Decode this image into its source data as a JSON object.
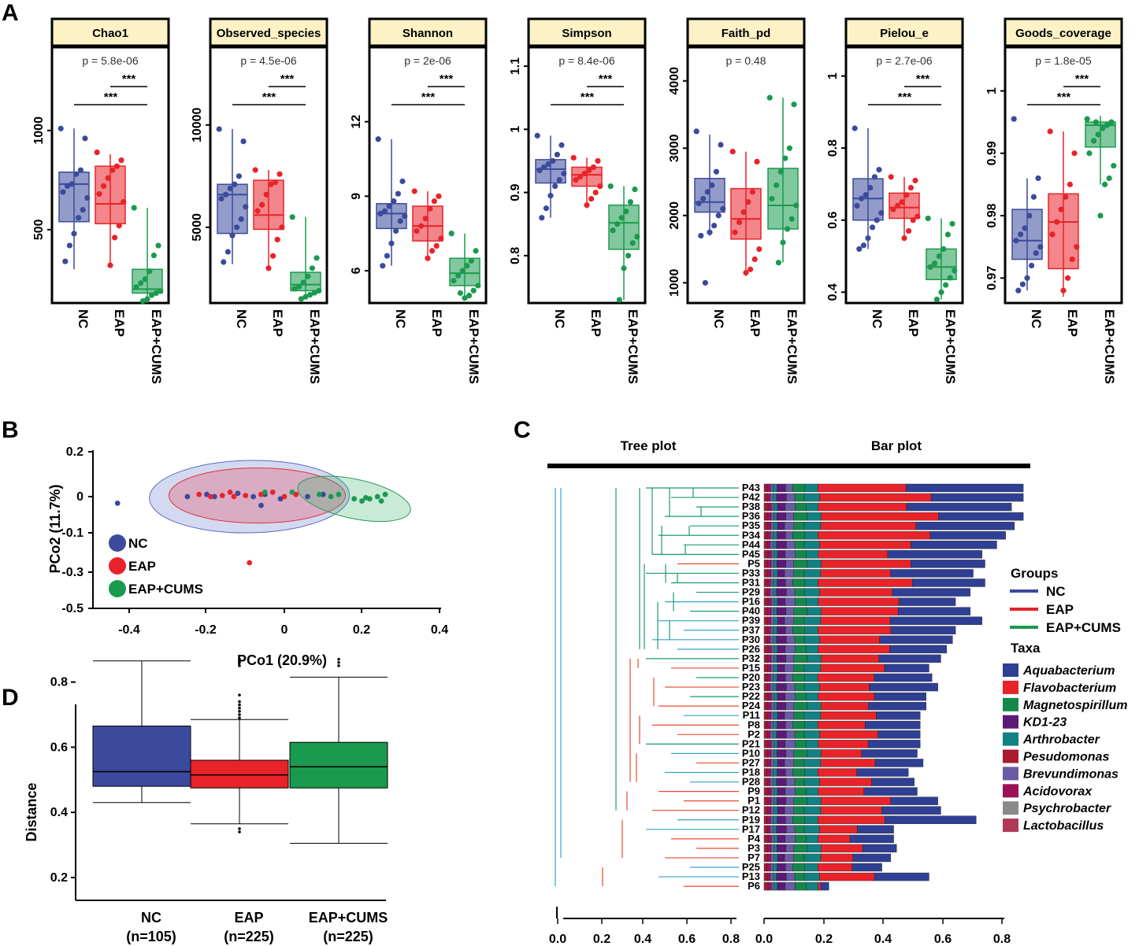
{
  "panels": {
    "a": "A",
    "b": "B",
    "c": "C",
    "d": "D"
  },
  "colors": {
    "nc": "#3b4a9c",
    "eap": "#e8232a",
    "cums": "#1a9a4e",
    "title_bg": "#fdf2c6"
  },
  "alpha_groups": [
    "NC",
    "EAP",
    "EAP+CUMS"
  ],
  "alpha_diversity": [
    {
      "title": "Chao1",
      "p": "p = 5.8e-06",
      "sig": [
        "***",
        "***"
      ],
      "ymin": 130,
      "ymax": 1420,
      "ticks": [
        500,
        1000
      ],
      "boxes": [
        [
          300,
          540,
          730,
          790,
          1010
        ],
        [
          310,
          530,
          630,
          820,
          880
        ],
        [
          130,
          180,
          200,
          300,
          610
        ]
      ],
      "points": [
        [
          1010,
          960,
          800,
          780,
          730,
          720,
          690,
          660,
          600,
          560,
          480,
          420,
          340
        ],
        [
          890,
          850,
          820,
          800,
          760,
          720,
          680,
          640,
          520,
          460,
          320
        ],
        [
          610,
          420,
          370,
          290,
          250,
          230,
          210,
          190,
          180,
          170,
          150,
          140
        ]
      ]
    },
    {
      "title": "Observed_species",
      "p": "p = 4.5e-06",
      "sig": [
        "***",
        "***"
      ],
      "ymin": 1300,
      "ymax": 13800,
      "ticks": [
        5000,
        10000
      ],
      "boxes": [
        [
          3200,
          4700,
          6600,
          7100,
          9800
        ],
        [
          2900,
          4900,
          5600,
          7300,
          7800
        ],
        [
          1500,
          1900,
          2200,
          2800,
          5500
        ]
      ],
      "points": [
        [
          9800,
          9200,
          7500,
          7100,
          6900,
          6600,
          6400,
          6000,
          5400,
          5000,
          4600,
          3800,
          3300
        ],
        [
          7800,
          7600,
          7200,
          7100,
          6600,
          6100,
          5800,
          5000,
          4400,
          3600,
          3000
        ],
        [
          5500,
          3500,
          3000,
          2600,
          2300,
          2100,
          2000,
          1900,
          1800,
          1700,
          1600,
          1500
        ]
      ]
    },
    {
      "title": "Shannon",
      "p": "p = 2e-06",
      "sig": [
        "***",
        "***"
      ],
      "ymin": 4.7,
      "ymax": 15.0,
      "ticks": [
        6,
        9,
        12
      ],
      "boxes": [
        [
          6.2,
          7.7,
          8.3,
          8.7,
          11.3
        ],
        [
          6.5,
          7.2,
          7.8,
          8.6,
          9.2
        ],
        [
          4.9,
          5.4,
          5.9,
          6.5,
          7.5
        ]
      ],
      "points": [
        [
          11.3,
          9.6,
          9.1,
          8.8,
          8.6,
          8.4,
          8.3,
          8.2,
          8.0,
          7.6,
          7.1,
          6.6,
          6.2
        ],
        [
          9.2,
          9.0,
          8.8,
          8.5,
          8.1,
          7.8,
          7.6,
          7.3,
          7.0,
          6.8,
          6.5
        ],
        [
          7.5,
          6.8,
          6.4,
          6.2,
          6.0,
          5.8,
          5.6,
          5.4,
          5.2,
          5.0,
          4.9,
          5.1
        ]
      ]
    },
    {
      "title": "Simpson",
      "p": "p = 8.4e-06",
      "sig": [
        "***",
        "***"
      ],
      "ymin": 0.725,
      "ymax": 1.13,
      "ticks": [
        0.8,
        0.9,
        1.0,
        1.1
      ],
      "boxes": [
        [
          0.86,
          0.915,
          0.937,
          0.952,
          0.99
        ],
        [
          0.875,
          0.91,
          0.928,
          0.94,
          0.955
        ],
        [
          0.73,
          0.81,
          0.852,
          0.88,
          0.91
        ]
      ],
      "points": [
        [
          0.99,
          0.975,
          0.96,
          0.95,
          0.945,
          0.94,
          0.935,
          0.93,
          0.92,
          0.91,
          0.895,
          0.875,
          0.86
        ],
        [
          0.955,
          0.95,
          0.94,
          0.935,
          0.93,
          0.925,
          0.92,
          0.91,
          0.9,
          0.89,
          0.88
        ],
        [
          0.91,
          0.905,
          0.885,
          0.87,
          0.86,
          0.85,
          0.84,
          0.83,
          0.82,
          0.8,
          0.78,
          0.73
        ]
      ]
    },
    {
      "title": "Faith_pd",
      "p": "p = 0.48",
      "sig": [],
      "ymin": 700,
      "ymax": 4500,
      "ticks": [
        1000,
        2000,
        3000,
        4000
      ],
      "boxes": [
        [
          1700,
          2050,
          2200,
          2550,
          3200
        ],
        [
          1100,
          1650,
          1950,
          2400,
          2950
        ],
        [
          1300,
          1800,
          2150,
          2700,
          3750
        ]
      ],
      "points": [
        [
          3250,
          3050,
          2650,
          2450,
          2350,
          2250,
          2180,
          2100,
          2000,
          1850,
          1750,
          1000,
          1700
        ],
        [
          2950,
          2800,
          2350,
          2200,
          2050,
          1900,
          1750,
          1500,
          1350,
          1200,
          1150
        ],
        [
          3750,
          3650,
          3000,
          2850,
          2650,
          2450,
          2250,
          2150,
          1950,
          1800,
          1600,
          1300
        ]
      ]
    },
    {
      "title": "Pielou_e",
      "p": "p = 2.7e-06",
      "sig": [
        "***",
        "***"
      ],
      "ymin": 0.37,
      "ymax": 1.08,
      "ticks": [
        0.4,
        0.6,
        0.8,
        1.0
      ],
      "boxes": [
        [
          0.52,
          0.6,
          0.66,
          0.715,
          0.855
        ],
        [
          0.545,
          0.605,
          0.635,
          0.675,
          0.72
        ],
        [
          0.38,
          0.435,
          0.47,
          0.52,
          0.605
        ]
      ],
      "points": [
        [
          0.855,
          0.74,
          0.72,
          0.69,
          0.67,
          0.66,
          0.64,
          0.62,
          0.6,
          0.58,
          0.55,
          0.53,
          0.52
        ],
        [
          0.72,
          0.71,
          0.69,
          0.67,
          0.65,
          0.64,
          0.63,
          0.61,
          0.6,
          0.57,
          0.55
        ],
        [
          0.605,
          0.59,
          0.56,
          0.52,
          0.5,
          0.48,
          0.47,
          0.46,
          0.44,
          0.42,
          0.4,
          0.38
        ]
      ]
    },
    {
      "title": "Goods_coverage",
      "p": "p = 1.8e-05",
      "sig": [
        "***",
        "***"
      ],
      "ymin": 0.966,
      "ymax": 1.007,
      "ticks": [
        0.97,
        0.98,
        0.99,
        1.0
      ],
      "boxes": [
        [
          0.968,
          0.973,
          0.976,
          0.981,
          0.986
        ],
        [
          0.967,
          0.9715,
          0.979,
          0.9835,
          0.9935
        ],
        [
          0.985,
          0.991,
          0.9945,
          0.995,
          0.996
        ]
      ],
      "points": [
        [
          0.9955,
          0.986,
          0.983,
          0.98,
          0.978,
          0.977,
          0.976,
          0.975,
          0.974,
          0.972,
          0.97,
          0.969,
          0.968
        ],
        [
          0.9935,
          0.99,
          0.985,
          0.983,
          0.981,
          0.979,
          0.977,
          0.975,
          0.973,
          0.97,
          0.968
        ],
        [
          0.9955,
          0.995,
          0.9945,
          0.994,
          0.993,
          0.992,
          0.99,
          0.988,
          0.986,
          0.985,
          0.98,
          0.995
        ]
      ]
    }
  ],
  "pcoa": {
    "xlabel": "PCo1 (20.9%)",
    "ylabel": "PCo2 (11.7%)",
    "xticks": [
      "-0.4",
      "-0.2",
      "0",
      "0.2",
      "0.4"
    ],
    "yticks": [
      "0.2",
      "0",
      "-0.1",
      "-0.3",
      "-0.5"
    ],
    "legend": [
      "NC",
      "EAP",
      "EAP+CUMS"
    ],
    "points_nc": [
      [
        -0.43,
        -0.03
      ],
      [
        -0.25,
        0.0
      ],
      [
        -0.2,
        0.01
      ],
      [
        -0.18,
        0.0
      ],
      [
        -0.12,
        0.015
      ],
      [
        -0.08,
        0.0
      ],
      [
        -0.05,
        0.01
      ],
      [
        -0.01,
        -0.01
      ],
      [
        0.06,
        0.0
      ],
      [
        0.1,
        0.01
      ],
      [
        -0.06,
        -0.04
      ]
    ],
    "points_eap": [
      [
        -0.22,
        0.01
      ],
      [
        -0.19,
        0.0
      ],
      [
        -0.16,
        0.005
      ],
      [
        -0.14,
        0.02
      ],
      [
        -0.13,
        0.0
      ],
      [
        -0.1,
        0.005
      ],
      [
        -0.06,
        0.01
      ],
      [
        -0.03,
        0.02
      ],
      [
        0.0,
        0.0
      ],
      [
        0.03,
        0.01
      ],
      [
        -0.09,
        -0.3
      ]
    ],
    "points_cums": [
      [
        -0.05,
        0.02
      ],
      [
        0.02,
        0.02
      ],
      [
        0.09,
        0.01
      ],
      [
        0.12,
        0.0
      ],
      [
        0.14,
        0.01
      ],
      [
        0.18,
        -0.01
      ],
      [
        0.2,
        -0.02
      ],
      [
        0.22,
        -0.01
      ],
      [
        0.24,
        0.0
      ],
      [
        0.25,
        -0.02
      ],
      [
        0.26,
        0.01
      ],
      [
        0.21,
        -0.005
      ]
    ]
  },
  "distance": {
    "ylabel": "Distance",
    "yticks": [
      "0.8",
      "0.6",
      "0.4",
      "0.2"
    ],
    "groups": [
      {
        "name": "NC",
        "n": "(n=105)"
      },
      {
        "name": "EAP",
        "n": "(n=225)"
      },
      {
        "name": "EAP+CUMS",
        "n": "(n=225)"
      }
    ],
    "boxes": [
      [
        0.43,
        0.48,
        0.525,
        0.665,
        0.865
      ],
      [
        0.365,
        0.475,
        0.515,
        0.56,
        0.685
      ],
      [
        0.305,
        0.475,
        0.54,
        0.615,
        0.815
      ]
    ]
  },
  "tree_bar": {
    "tree_title": "Tree plot",
    "bar_title": "Bar plot",
    "samples": [
      "P43",
      "P42",
      "P38",
      "P36",
      "P35",
      "P34",
      "P44",
      "P45",
      "P5",
      "P33",
      "P31",
      "P29",
      "P16",
      "P40",
      "P39",
      "P37",
      "P30",
      "P26",
      "P32",
      "P15",
      "P20",
      "P23",
      "P22",
      "P24",
      "P11",
      "P8",
      "P2",
      "P21",
      "P10",
      "P27",
      "P18",
      "P28",
      "P9",
      "P1",
      "P12",
      "P19",
      "P17",
      "P4",
      "P3",
      "P7",
      "P25",
      "P13",
      "P6"
    ],
    "totals": [
      0.88,
      0.88,
      0.84,
      0.88,
      0.85,
      0.82,
      0.79,
      0.74,
      0.75,
      0.71,
      0.75,
      0.7,
      0.65,
      0.7,
      0.74,
      0.65,
      0.64,
      0.62,
      0.6,
      0.56,
      0.57,
      0.59,
      0.55,
      0.55,
      0.53,
      0.53,
      0.53,
      0.53,
      0.52,
      0.54,
      0.49,
      0.51,
      0.52,
      0.59,
      0.6,
      0.72,
      0.44,
      0.44,
      0.45,
      0.43,
      0.4,
      0.56,
      0.22
    ],
    "xticks": [
      "0.0",
      "0.2",
      "0.4",
      "0.6",
      "0.8"
    ],
    "groups_title": "Groups",
    "groups": [
      "NC",
      "EAP",
      "EAP+CUMS"
    ],
    "taxa_title": "Taxa",
    "taxa": [
      "Aquabacterium",
      "Flavobacterium",
      "Magnetospirillum",
      "KD1-23",
      "Arthrobacter",
      "Pesudomonas",
      "Brevundimonas",
      "Acidovorax",
      "Psychrobacter",
      "Lactobacillus"
    ],
    "taxa_colors": [
      "#2f3f94",
      "#e8232a",
      "#14884a",
      "#5c1a77",
      "#128182",
      "#aa1a30",
      "#6b5aa5",
      "#9c1256",
      "#8a8a8a",
      "#b03a55"
    ]
  }
}
